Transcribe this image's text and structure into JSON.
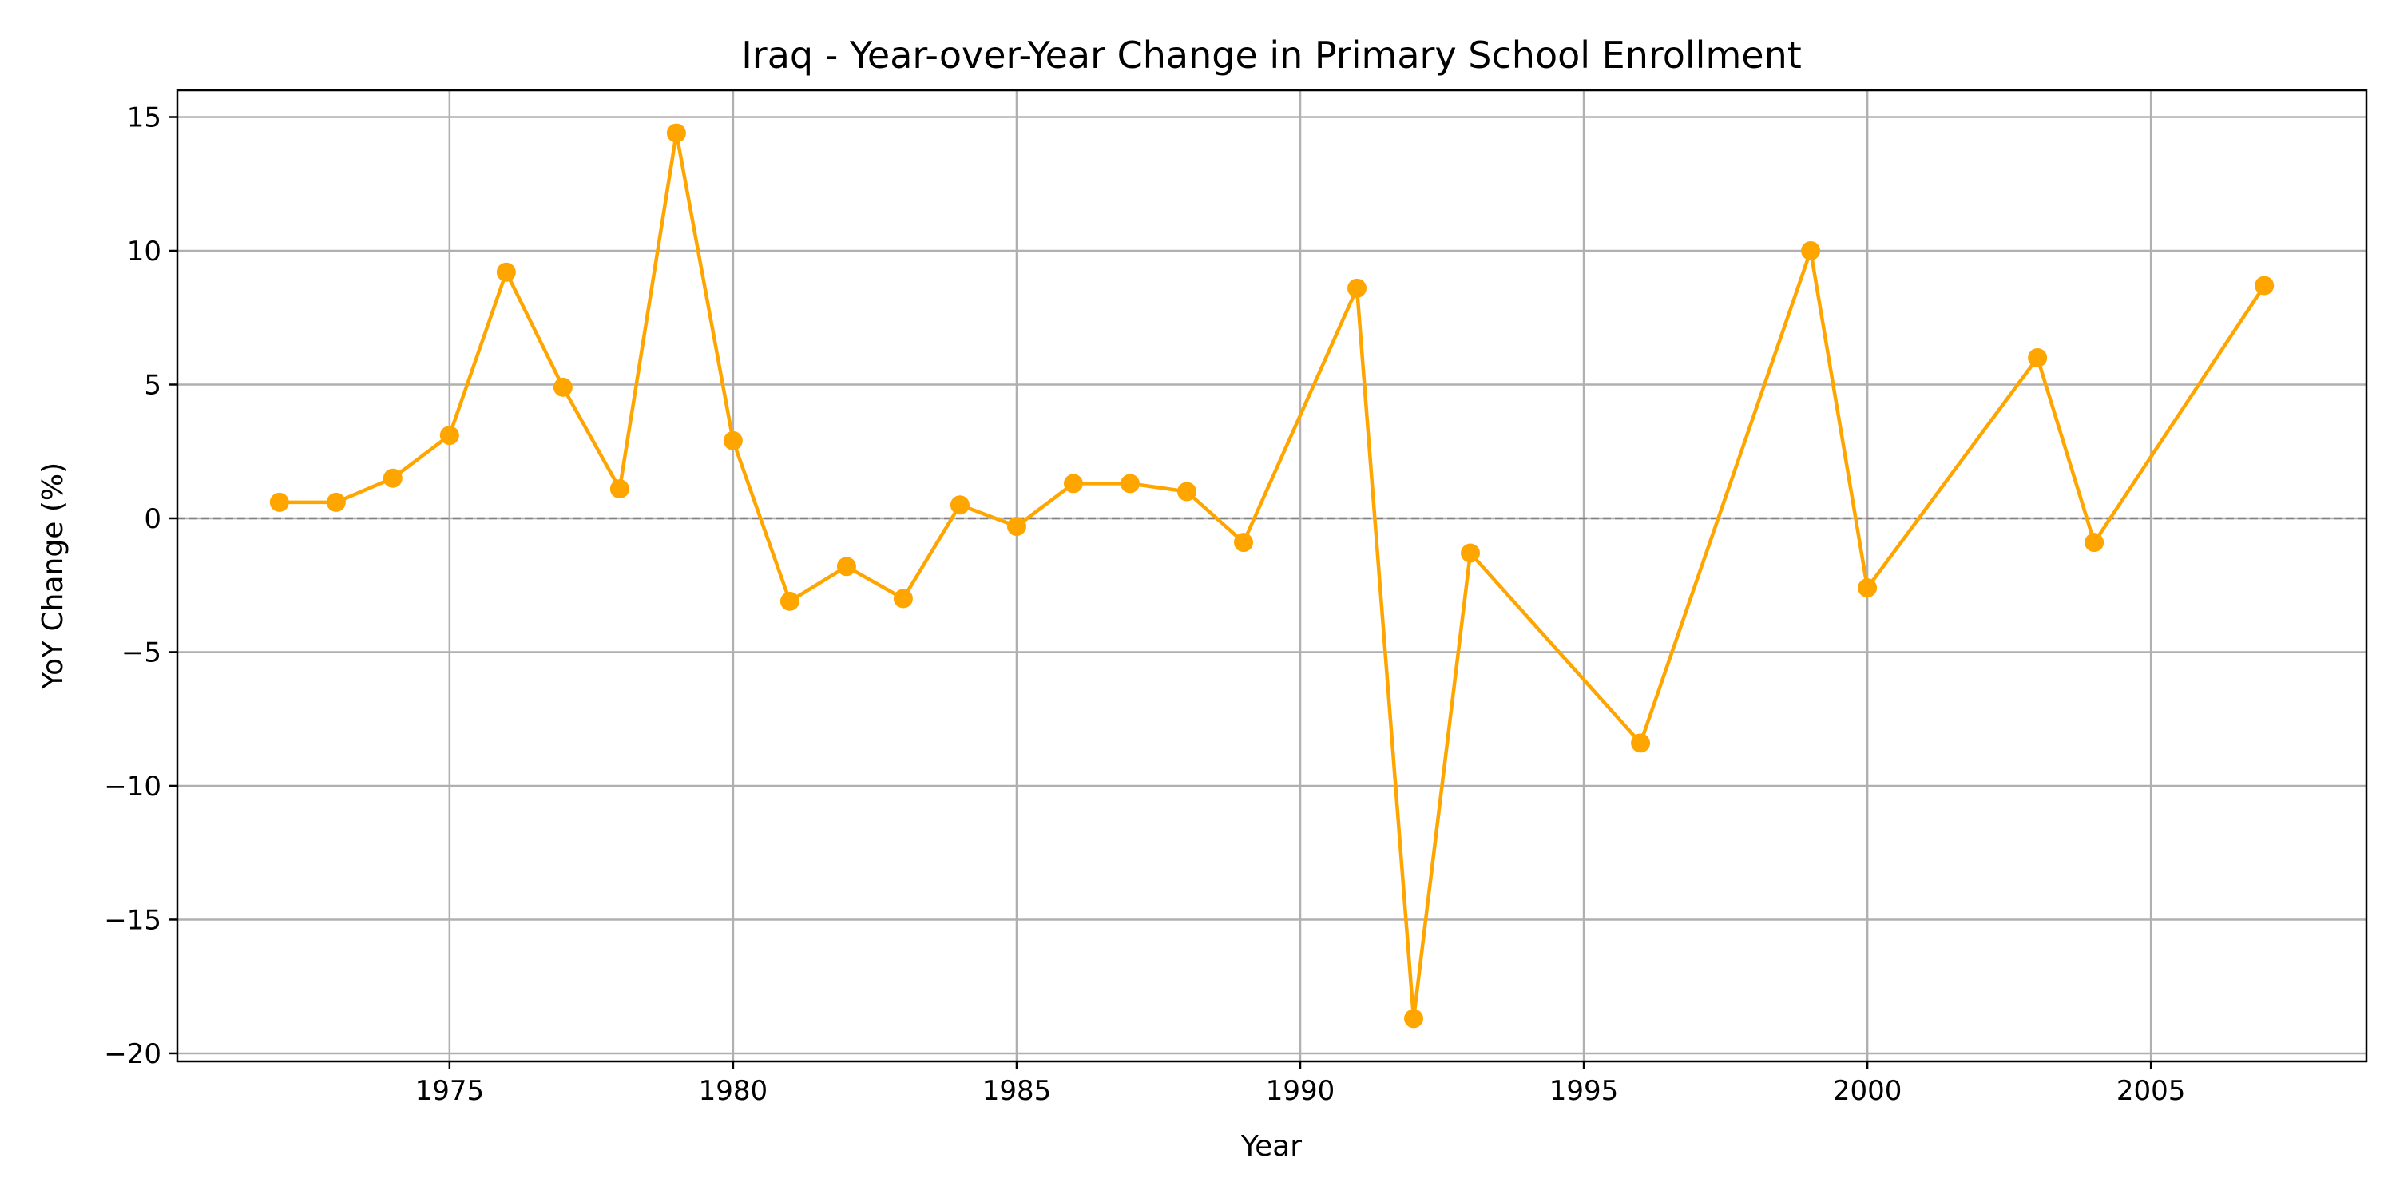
{
  "chart_data": {
    "type": "line",
    "title": "Iraq - Year-over-Year Change in Primary School Enrollment",
    "xlabel": "Year",
    "ylabel": "YoY Change (%)",
    "xlim": [
      1970.2,
      2008.8
    ],
    "ylim": [
      -20.3,
      16
    ],
    "x_ticks": [
      1975,
      1980,
      1985,
      1990,
      1995,
      2000,
      2005
    ],
    "y_ticks": [
      -20,
      -15,
      -10,
      -5,
      0,
      5,
      10,
      15
    ],
    "grid": true,
    "reference_line": {
      "y": 0,
      "style": "dashed",
      "color": "#808080"
    },
    "series": [
      {
        "color": "#FFA500",
        "marker": "circle",
        "points": [
          {
            "x": 1972,
            "y": 0.6
          },
          {
            "x": 1973,
            "y": 0.6
          },
          {
            "x": 1974,
            "y": 1.5
          },
          {
            "x": 1975,
            "y": 3.1
          },
          {
            "x": 1976,
            "y": 9.2
          },
          {
            "x": 1977,
            "y": 4.9
          },
          {
            "x": 1978,
            "y": 1.1
          },
          {
            "x": 1979,
            "y": 14.4
          },
          {
            "x": 1980,
            "y": 2.9
          },
          {
            "x": 1981,
            "y": -3.1
          },
          {
            "x": 1982,
            "y": -1.8
          },
          {
            "x": 1983,
            "y": -3.0
          },
          {
            "x": 1984,
            "y": 0.5
          },
          {
            "x": 1985,
            "y": -0.3
          },
          {
            "x": 1986,
            "y": 1.3
          },
          {
            "x": 1987,
            "y": 1.3
          },
          {
            "x": 1988,
            "y": 1.0
          },
          {
            "x": 1989,
            "y": -0.9
          },
          {
            "x": 1991,
            "y": 8.6
          },
          {
            "x": 1992,
            "y": -18.7
          },
          {
            "x": 1993,
            "y": -1.3
          },
          {
            "x": 1996,
            "y": -8.4
          },
          {
            "x": 1999,
            "y": 10.0
          },
          {
            "x": 2000,
            "y": -2.6
          },
          {
            "x": 2003,
            "y": 6.0
          },
          {
            "x": 2004,
            "y": -0.9
          },
          {
            "x": 2007,
            "y": 8.7
          }
        ]
      }
    ]
  }
}
